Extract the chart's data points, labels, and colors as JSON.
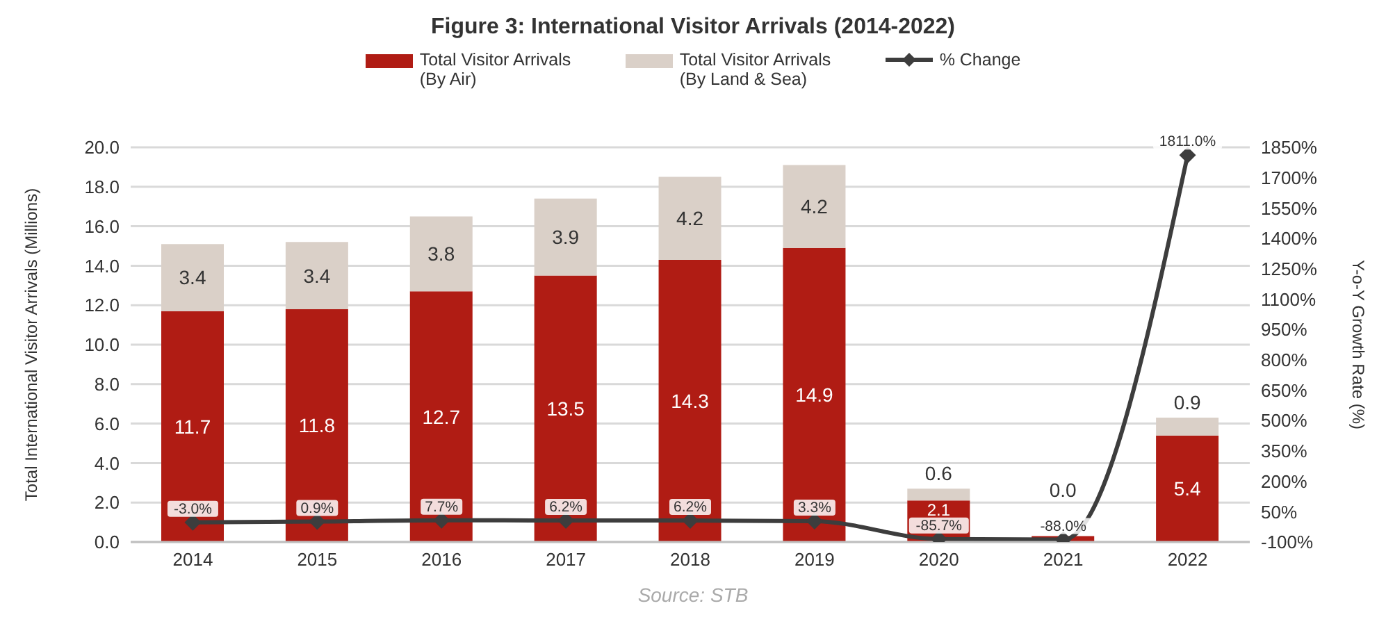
{
  "chart_data": {
    "type": "bar",
    "title": "Figure 3: International Visitor Arrivals (2014-2022)",
    "ylabel": "Total International Visitor Arrivals (Millions)",
    "y2label": "Y-o-Y Growth Rate (%)",
    "annotations": [
      "Source: STB"
    ],
    "categories": [
      "2014",
      "2015",
      "2016",
      "2017",
      "2018",
      "2019",
      "2020",
      "2021",
      "2022"
    ],
    "stacked": true,
    "grid": "y",
    "legend": "top",
    "ylim": [
      0,
      20
    ],
    "yticks": [
      {
        "value": 0,
        "label": "0.0"
      },
      {
        "value": 2,
        "label": "2.0"
      },
      {
        "value": 4,
        "label": "4.0"
      },
      {
        "value": 6,
        "label": "6.0"
      },
      {
        "value": 8,
        "label": "8.0"
      },
      {
        "value": 10,
        "label": "10.0"
      },
      {
        "value": 12,
        "label": "12.0"
      },
      {
        "value": 14,
        "label": "14.0"
      },
      {
        "value": 16,
        "label": "16.0"
      },
      {
        "value": 18,
        "label": "18.0"
      },
      {
        "value": 20,
        "label": "20.0"
      }
    ],
    "y2lim": [
      -100,
      1850
    ],
    "y2ticks": [
      {
        "value": -100,
        "label": "-100%"
      },
      {
        "value": 50,
        "label": "50%"
      },
      {
        "value": 200,
        "label": "200%"
      },
      {
        "value": 350,
        "label": "350%"
      },
      {
        "value": 500,
        "label": "500%"
      },
      {
        "value": 650,
        "label": "650%"
      },
      {
        "value": 800,
        "label": "800%"
      },
      {
        "value": 950,
        "label": "950%"
      },
      {
        "value": 1100,
        "label": "1100%"
      },
      {
        "value": 1250,
        "label": "1250%"
      },
      {
        "value": 1400,
        "label": "1400%"
      },
      {
        "value": 1550,
        "label": "1550%"
      },
      {
        "value": 1700,
        "label": "1700%"
      },
      {
        "value": 1850,
        "label": "1850%"
      }
    ],
    "series": [
      {
        "name": "Total Visitor Arrivals (By Air)",
        "color": "#b01c14",
        "values": [
          11.7,
          11.8,
          12.7,
          13.5,
          14.3,
          14.9,
          2.1,
          0.3,
          5.4
        ],
        "value_labels": [
          "11.7",
          "11.8",
          "12.7",
          "13.5",
          "14.3",
          "14.9",
          "2.1",
          null,
          "5.4"
        ]
      },
      {
        "name": "Total Visitor Arrivals (By Land & Sea)",
        "color": "#dad0c8",
        "values": [
          3.4,
          3.4,
          3.8,
          3.9,
          4.2,
          4.2,
          0.6,
          0.0,
          0.9
        ],
        "value_labels": [
          "3.4",
          "3.4",
          "3.8",
          "3.9",
          "4.2",
          "4.2",
          "0.6",
          "0.0",
          "0.9"
        ]
      },
      {
        "name": "% Change",
        "type": "line",
        "axis": "y2",
        "color": "#3d3d3d",
        "marker": "diamond",
        "line_style": "solid",
        "values": [
          -3.0,
          0.9,
          7.7,
          6.2,
          6.2,
          3.3,
          -85.7,
          -88.0,
          1811.0
        ],
        "value_labels": [
          "-3.0%",
          "0.9%",
          "7.7%",
          "6.2%",
          "6.2%",
          "3.3%",
          "-85.7%",
          "-88.0%",
          "1811.0%"
        ]
      }
    ]
  }
}
